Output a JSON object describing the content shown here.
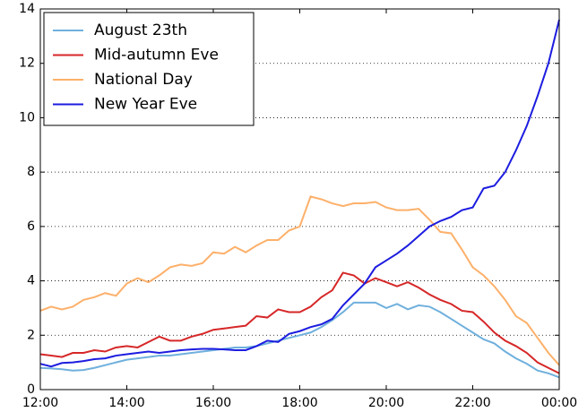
{
  "chart_data": {
    "type": "line",
    "x": [
      12,
      12.25,
      12.5,
      12.75,
      13,
      13.25,
      13.5,
      13.75,
      14,
      14.25,
      14.5,
      14.75,
      15,
      15.25,
      15.5,
      15.75,
      16,
      16.25,
      16.5,
      16.75,
      17,
      17.25,
      17.5,
      17.75,
      18,
      18.25,
      18.5,
      18.75,
      19,
      19.25,
      19.5,
      19.75,
      20,
      20.25,
      20.5,
      20.75,
      21,
      21.25,
      21.5,
      21.75,
      22,
      22.25,
      22.5,
      22.75,
      23,
      23.25,
      23.5,
      23.75,
      24
    ],
    "series": [
      {
        "name": "August 23th",
        "color": "#6fb0dd",
        "values": [
          0.8,
          0.78,
          0.75,
          0.7,
          0.72,
          0.8,
          0.9,
          1.0,
          1.1,
          1.15,
          1.2,
          1.25,
          1.25,
          1.3,
          1.35,
          1.4,
          1.45,
          1.5,
          1.55,
          1.55,
          1.6,
          1.7,
          1.8,
          1.9,
          2.0,
          2.1,
          2.3,
          2.55,
          2.85,
          3.2,
          3.2,
          3.2,
          3.0,
          3.15,
          2.95,
          3.1,
          3.05,
          2.85,
          2.6,
          2.35,
          2.1,
          1.85,
          1.7,
          1.4,
          1.15,
          0.95,
          0.7,
          0.6,
          0.45
        ]
      },
      {
        "name": "Mid-autumn Eve",
        "color": "#d62728",
        "values": [
          1.3,
          1.25,
          1.2,
          1.35,
          1.35,
          1.45,
          1.4,
          1.55,
          1.6,
          1.55,
          1.75,
          1.95,
          1.8,
          1.8,
          1.95,
          2.05,
          2.2,
          2.25,
          2.3,
          2.35,
          2.7,
          2.65,
          2.95,
          2.85,
          2.85,
          3.05,
          3.4,
          3.65,
          4.3,
          4.2,
          3.9,
          4.1,
          3.95,
          3.8,
          3.95,
          3.75,
          3.5,
          3.3,
          3.15,
          2.9,
          2.85,
          2.5,
          2.1,
          1.8,
          1.6,
          1.35,
          1.0,
          0.8,
          0.6
        ]
      },
      {
        "name": "National Day",
        "color": "#fdb06a",
        "values": [
          2.9,
          3.05,
          2.95,
          3.05,
          3.3,
          3.4,
          3.55,
          3.45,
          3.9,
          4.1,
          3.95,
          4.2,
          4.5,
          4.6,
          4.55,
          4.65,
          5.05,
          5.0,
          5.25,
          5.05,
          5.3,
          5.5,
          5.5,
          5.85,
          6.0,
          7.1,
          7.0,
          6.85,
          6.75,
          6.85,
          6.85,
          6.9,
          6.7,
          6.6,
          6.6,
          6.65,
          6.25,
          5.8,
          5.75,
          5.15,
          4.5,
          4.2,
          3.8,
          3.3,
          2.7,
          2.45,
          1.9,
          1.35,
          0.9
        ]
      },
      {
        "name": "New Year Eve",
        "color": "#1c1ce0",
        "values": [
          0.95,
          0.85,
          0.98,
          1.0,
          1.05,
          1.12,
          1.15,
          1.25,
          1.3,
          1.35,
          1.4,
          1.35,
          1.4,
          1.45,
          1.48,
          1.5,
          1.5,
          1.48,
          1.45,
          1.45,
          1.6,
          1.8,
          1.75,
          2.05,
          2.15,
          2.3,
          2.4,
          2.6,
          3.1,
          3.5,
          3.9,
          4.5,
          4.75,
          5.0,
          5.3,
          5.65,
          6.0,
          6.2,
          6.35,
          6.6,
          6.7,
          7.4,
          7.5,
          8.0,
          8.8,
          9.7,
          10.8,
          12.0,
          13.6
        ]
      }
    ],
    "xlim": [
      12,
      24
    ],
    "xticks": [
      {
        "value": 12,
        "label": "12:00"
      },
      {
        "value": 14,
        "label": "14:00"
      },
      {
        "value": 16,
        "label": "16:00"
      },
      {
        "value": 18,
        "label": "18:00"
      },
      {
        "value": 20,
        "label": "20:00"
      },
      {
        "value": 22,
        "label": "22:00"
      },
      {
        "value": 24,
        "label": "00:00"
      }
    ],
    "ylim": [
      0,
      14
    ],
    "yticks": [
      0,
      2,
      4,
      6,
      8,
      10,
      12,
      14
    ],
    "grid": true,
    "legend": "upper left"
  }
}
